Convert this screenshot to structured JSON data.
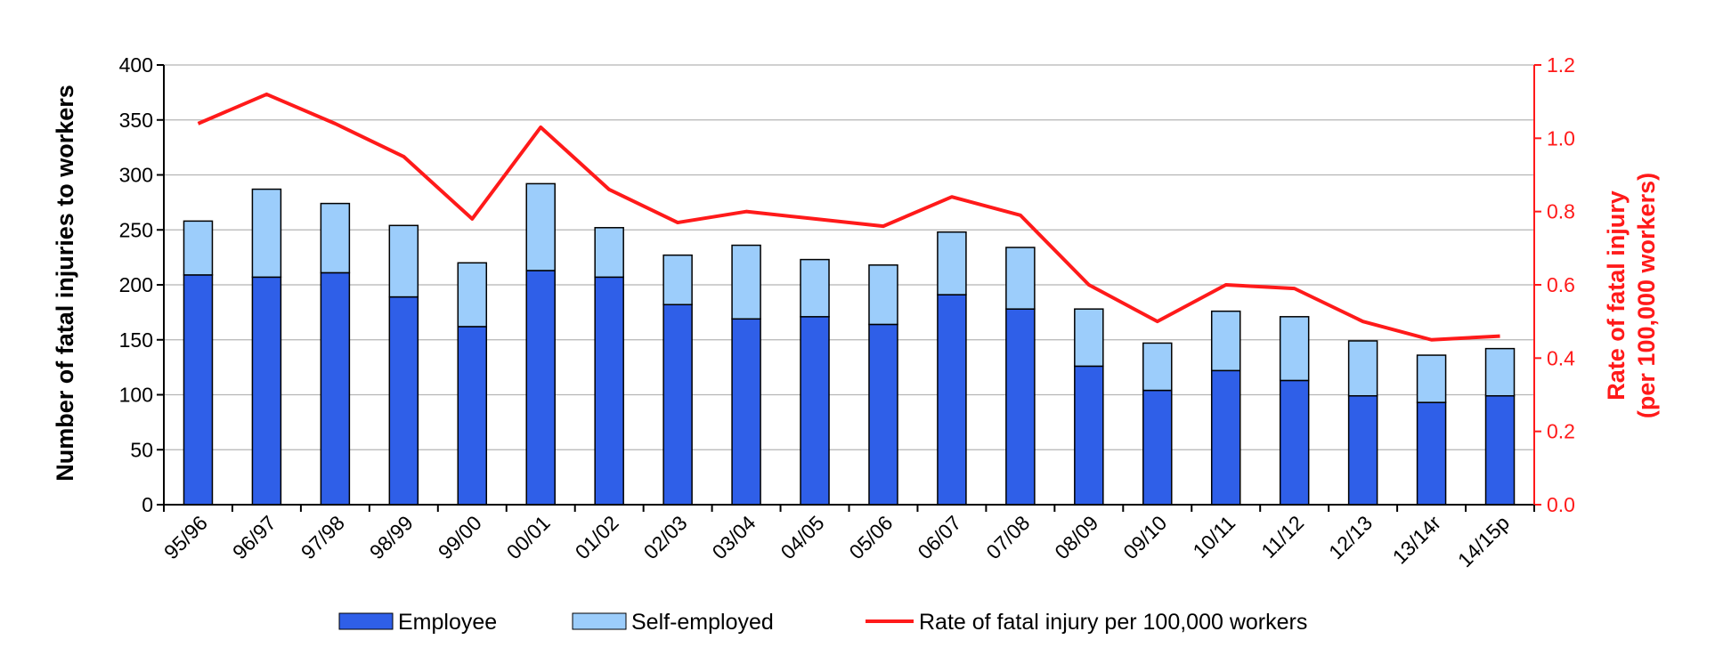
{
  "chart_data": {
    "type": "bar",
    "stacked": true,
    "categories": [
      "95/96",
      "96/97",
      "97/98",
      "98/99",
      "99/00",
      "00/01",
      "01/02",
      "02/03",
      "03/04",
      "04/05",
      "05/06",
      "06/07",
      "07/08",
      "08/09",
      "09/10",
      "10/11",
      "11/12",
      "12/13",
      "13/14r",
      "14/15p"
    ],
    "series": [
      {
        "name": "Employee",
        "type": "bar",
        "axis": "left",
        "color": "#2f5fe8",
        "values": [
          209,
          207,
          211,
          189,
          162,
          213,
          207,
          182,
          169,
          171,
          164,
          191,
          178,
          126,
          104,
          122,
          113,
          99,
          93,
          99
        ]
      },
      {
        "name": "Self-employed",
        "type": "bar",
        "axis": "left",
        "color": "#9ccdfb",
        "values": [
          49,
          80,
          63,
          65,
          58,
          79,
          45,
          45,
          67,
          52,
          54,
          57,
          56,
          52,
          43,
          54,
          58,
          50,
          43,
          43
        ]
      },
      {
        "name": "Rate of fatal injury per 100,000 workers",
        "type": "line",
        "axis": "right",
        "color": "#ff1a1a",
        "values": [
          1.04,
          1.12,
          1.04,
          0.95,
          0.78,
          1.03,
          0.86,
          0.77,
          0.8,
          0.78,
          0.76,
          0.84,
          0.79,
          0.6,
          0.5,
          0.6,
          0.59,
          0.5,
          0.45,
          0.46
        ]
      }
    ],
    "ylabel": "Number of fatal injuries to workers",
    "y2label_line1": "Rate of fatal injury",
    "y2label_line2": "(per 100,000 workers)",
    "ylim": [
      0,
      400
    ],
    "y2lim": [
      0,
      1.2
    ],
    "yticks": [
      "0",
      "50",
      "100",
      "150",
      "200",
      "250",
      "300",
      "350",
      "400"
    ],
    "y2ticks": [
      "0.0",
      "0.2",
      "0.4",
      "0.6",
      "0.8",
      "1.0",
      "1.2"
    ],
    "grid": true,
    "legend_position": "bottom"
  }
}
